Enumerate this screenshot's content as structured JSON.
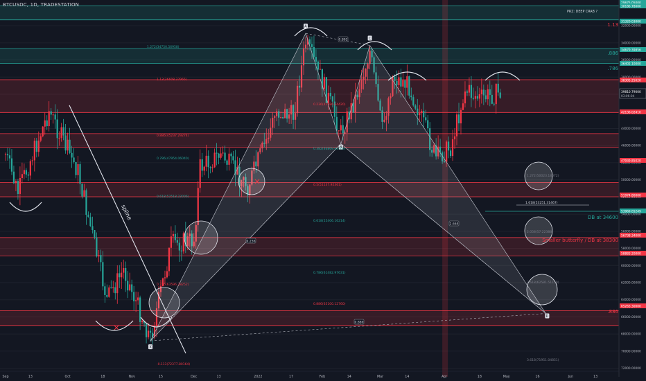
{
  "header": {
    "title": "BTCUSDC, 1D, TRADESTATION"
  },
  "axis": {
    "currency": "USDC",
    "countdown": "03:06:04",
    "last_price_label": "39810.79000",
    "price_ticks": [
      "32000.00000",
      "34000.00000",
      "36000.00000",
      "38000.00000",
      "40000.00000",
      "42000.00000",
      "44000.00000",
      "46000.00000",
      "48000.00000",
      "50000.00000",
      "52000.00000",
      "54000.00000",
      "56000.00000",
      "58000.00000",
      "60000.00000",
      "62000.00000",
      "64000.00000",
      "66000.00000",
      "68000.00000",
      "70000.00000",
      "72000.00000"
    ],
    "date_ticks": [
      "Sep",
      "13",
      "Oct",
      "18",
      "Nov",
      "15",
      "Dec",
      "13",
      "2022",
      "17",
      "Feb",
      "14",
      "Mar",
      "14",
      "Apr",
      "18",
      "May",
      "16",
      "Jun",
      "13"
    ]
  },
  "price_tags": [
    {
      "text": "29675.05000",
      "color": "#26a69a"
    },
    {
      "text": "30186.78000",
      "color": "#26a69a"
    },
    {
      "text": "31320.03000",
      "color": "#26a69a"
    },
    {
      "text": "34679.39856",
      "color": "#26a69a"
    },
    {
      "text": "36402.10000",
      "color": "#26a69a"
    },
    {
      "text": "38305.25020",
      "color": "#f23645"
    },
    {
      "text": "42136.02410",
      "color": "#f23645"
    },
    {
      "text": "47939.85020",
      "color": "#f23645"
    },
    {
      "text": "51974.80000",
      "color": "#f23645"
    },
    {
      "text": "53969.65249",
      "color": "#26a69a"
    },
    {
      "text": "56738.34000",
      "color": "#f23645"
    },
    {
      "text": "58883.20000",
      "color": "#f23645"
    },
    {
      "text": "65263.30000",
      "color": "#f23645"
    }
  ],
  "annotations": {
    "prz": "PRZ: DEEP CRAB ?",
    "r_113": "1.13",
    "r_886_top": ".886",
    "r_786": ".786",
    "r_886_bottom": ".886",
    "db_34600": "DB at 34600",
    "smaller_butterfly": "Smaller butterfly / DB at 38300",
    "trendline": "spline"
  },
  "fib_labels": [
    {
      "text": "1.272(34750.56958)",
      "color": "#26a69a"
    },
    {
      "text": "1.13(36608.37966)",
      "color": "#f23645"
    },
    {
      "text": "0.236(41586.64420)",
      "color": "#f23645"
    },
    {
      "text": "0.382(46869.68509)",
      "color": "#26a69a"
    },
    {
      "text": "0.886(45237.29274)",
      "color": "#f23645"
    },
    {
      "text": "0.786(47954.06040)",
      "color": "#26a69a"
    },
    {
      "text": "0.5(51137.92361)",
      "color": "#f23645"
    },
    {
      "text": "0.618(52518.23006)",
      "color": "#26a69a"
    },
    {
      "text": "0.618(55406.16214)",
      "color": "#26a69a"
    },
    {
      "text": "0.786(61482.97631)",
      "color": "#26a69a"
    },
    {
      "text": "0.886(65100.12760)",
      "color": "#f23645"
    },
    {
      "text": "0.236(63596.28252)",
      "color": "#f23645"
    },
    {
      "text": "-0.113(72377.80164)",
      "color": "#f23645"
    },
    {
      "text": "1.272(50023.18072)",
      "color": "#787b86"
    },
    {
      "text": "1.618(53251.31467)",
      "color": "#d1d4dc"
    },
    {
      "text": "2.058(57.22388)",
      "color": "#787b86"
    },
    {
      "text": "2.618(62581.51159)",
      "color": "#787b86"
    },
    {
      "text": "3.618(71951.04851)",
      "color": "#787b86"
    }
  ],
  "point_labels": [
    "A",
    "B",
    "C",
    "D",
    "X"
  ],
  "ratio_labels": [
    "0.892",
    "0.236",
    "2.664",
    "0.889"
  ],
  "colors": {
    "bull": "#26a69a",
    "bear": "#f23645",
    "background": "#131722",
    "pattern": "#787b86"
  },
  "chart_data": {
    "type": "candlestick",
    "title": "BTCUSDC, 1D, TRADESTATION",
    "x_range": [
      "2021-09-01",
      "2022-06-20"
    ],
    "y_range": [
      73000,
      29000
    ],
    "price_axis_inverted": true,
    "pattern_points": [
      {
        "label": "X",
        "date": "2021-11-10",
        "price": 68800
      },
      {
        "label": "A",
        "date": "2022-01-24",
        "price": 32900
      },
      {
        "label": "B",
        "date": "2022-02-10",
        "price": 45800
      },
      {
        "label": "C",
        "date": "2022-02-24",
        "price": 34300
      },
      {
        "label": "D",
        "date": "2022-05-20",
        "price": 65600
      }
    ],
    "zones": [
      {
        "from": 29675.05,
        "to": 31320.03,
        "color": "#26a69a"
      },
      {
        "from": 34679.39856,
        "to": 36402.1,
        "color": "#26a69a"
      },
      {
        "from": 38305.2502,
        "to": 42136.0241,
        "color": "#f23645"
      },
      {
        "from": 44600,
        "to": 46200,
        "color": "#f23645"
      },
      {
        "from": 51974.8,
        "to": 50300,
        "color": "#f23645"
      },
      {
        "from": 56738.34,
        "to": 58883.2,
        "color": "#f23645"
      },
      {
        "from": 65263.3,
        "to": 67000,
        "color": "#f23645"
      }
    ]
  }
}
